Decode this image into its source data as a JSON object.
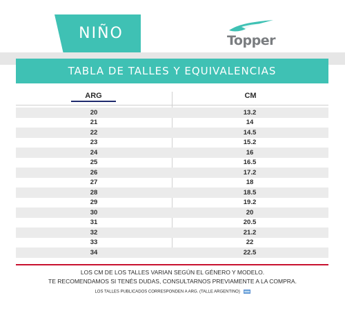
{
  "header": {
    "category_label": "NIÑO",
    "brand_name": "Topper",
    "brand_colors": {
      "mark": "#3fc1b4",
      "text": "#7a7d80"
    }
  },
  "table": {
    "title": "TABLA DE TALLES Y EQUIVALENCIAS",
    "columns": [
      "ARG",
      "CM"
    ],
    "rows": [
      [
        "20",
        "13.2"
      ],
      [
        "21",
        "14"
      ],
      [
        "22",
        "14.5"
      ],
      [
        "23",
        "15.2"
      ],
      [
        "24",
        "16"
      ],
      [
        "25",
        "16.5"
      ],
      [
        "26",
        "17.2"
      ],
      [
        "27",
        "18"
      ],
      [
        "28",
        "18.5"
      ],
      [
        "29",
        "19.2"
      ],
      [
        "30",
        "20"
      ],
      [
        "31",
        "20.5"
      ],
      [
        "32",
        "21.2"
      ],
      [
        "33",
        "22"
      ],
      [
        "34",
        "22.5"
      ]
    ]
  },
  "footer": {
    "note_line1": "LOS CM DE LOS TALLES VARIAN SEGÚN EL GÉNERO Y MODELO.",
    "note_line2": "TE RECOMENDAMOS SI TENÉS DUDAS, CONSULTARNOS PREVIAMENTE A LA COMPRA.",
    "note_small": "LOS TALLES PUBLICADOS CORRESPONDEN A ARG. (TALLE ARGENTINO)",
    "flag_icon": "argentina-flag-icon"
  },
  "colors": {
    "accent": "#3fc1b4",
    "rule_red": "#c8102e",
    "row_shade": "#ebebeb"
  }
}
